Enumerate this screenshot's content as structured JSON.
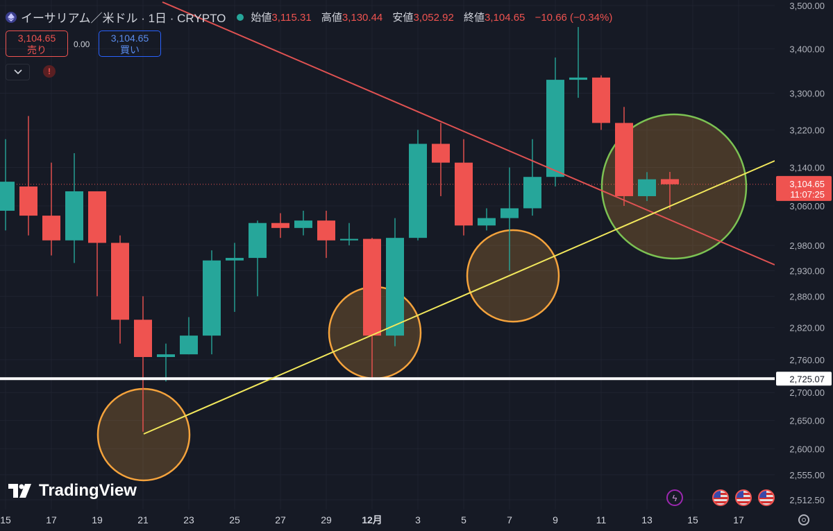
{
  "header": {
    "symbol": "イーサリアム／米ドル · 1日 · CRYPTO",
    "open_label": "始値",
    "open": "3,115.31",
    "high_label": "高値",
    "high": "3,130.44",
    "low_label": "安値",
    "low": "3,052.92",
    "close_label": "終値",
    "close": "3,104.65",
    "change": "−10.66 (−0.34%)"
  },
  "trade": {
    "sell_price": "3,104.65",
    "sell_label": "売り",
    "spread": "0.00",
    "buy_price": "3,104.65",
    "buy_label": "買い"
  },
  "brand": {
    "name": "TradingView"
  },
  "price_tag": {
    "price": "3,104.65",
    "countdown": "11:07:25"
  },
  "support_tag": "2,725.07",
  "icons": [
    "eth-icon",
    "chevron-down-icon",
    "warning-icon",
    "bolt-icon",
    "us-flag-icon",
    "settings-gear-icon"
  ],
  "colors": {
    "up": "#26a69a",
    "down": "#ef5350",
    "trend_up": "#f2e85c",
    "trend_down": "#e05252",
    "highlight": "#f5a33c",
    "highlight_last": "#7cc253",
    "support": "#ffffff"
  },
  "chart_data": {
    "type": "candlestick",
    "title": "イーサリアム／米ドル · 1日 · CRYPTO",
    "y_scale": "log",
    "ylim": [
      2480,
      3500
    ],
    "y_ticks": [
      3500,
      3400,
      3300,
      3220,
      3140,
      3060,
      2980,
      2930,
      2880,
      2820,
      2760,
      2700,
      2650,
      2600,
      2555,
      2512.5
    ],
    "y_tick_labels": [
      "3,500.00",
      "3,400.00",
      "3,300.00",
      "3,220.00",
      "3,140.00",
      "3,060.00",
      "2,980.00",
      "2,930.00",
      "2,880.00",
      "2,820.00",
      "2,760.00",
      "2,700.00",
      "2,650.00",
      "2,600.00",
      "2,555.00",
      "2,512.50"
    ],
    "x_ticks": [
      "2024-11-15",
      "2024-11-17",
      "2024-11-19",
      "2024-11-21",
      "2024-11-23",
      "2024-11-25",
      "2024-11-27",
      "2024-11-29",
      "2024-12-01",
      "2024-12-03",
      "2024-12-05",
      "2024-12-07",
      "2024-12-09",
      "2024-12-11",
      "2024-12-13",
      "2024-12-15",
      "2024-12-17"
    ],
    "x_tick_labels": [
      "15",
      "17",
      "19",
      "21",
      "23",
      "25",
      "27",
      "29",
      "12月",
      "3",
      "5",
      "7",
      "9",
      "11",
      "13",
      "15",
      "17"
    ],
    "candles": [
      {
        "date": "2024-11-15",
        "o": 3050,
        "h": 3200,
        "l": 3010,
        "c": 3110
      },
      {
        "date": "2024-11-16",
        "o": 3100,
        "h": 3250,
        "l": 3000,
        "c": 3040
      },
      {
        "date": "2024-11-17",
        "o": 3040,
        "h": 3150,
        "l": 2960,
        "c": 2990
      },
      {
        "date": "2024-11-18",
        "o": 2990,
        "h": 3170,
        "l": 2945,
        "c": 3090
      },
      {
        "date": "2024-11-19",
        "o": 3090,
        "h": 3090,
        "l": 2880,
        "c": 2985
      },
      {
        "date": "2024-11-20",
        "o": 2985,
        "h": 3000,
        "l": 2790,
        "c": 2835
      },
      {
        "date": "2024-11-21",
        "o": 2835,
        "h": 2880,
        "l": 2630,
        "c": 2765
      },
      {
        "date": "2024-11-22",
        "o": 2765,
        "h": 2790,
        "l": 2720,
        "c": 2770
      },
      {
        "date": "2024-11-23",
        "o": 2770,
        "h": 2840,
        "l": 2770,
        "c": 2805
      },
      {
        "date": "2024-11-24",
        "o": 2805,
        "h": 2970,
        "l": 2770,
        "c": 2950
      },
      {
        "date": "2024-11-25",
        "o": 2950,
        "h": 2985,
        "l": 2850,
        "c": 2955
      },
      {
        "date": "2024-11-26",
        "o": 2955,
        "h": 3030,
        "l": 2880,
        "c": 3025
      },
      {
        "date": "2024-11-27",
        "o": 3025,
        "h": 3045,
        "l": 2995,
        "c": 3015
      },
      {
        "date": "2024-11-28",
        "o": 3015,
        "h": 3050,
        "l": 3000,
        "c": 3030
      },
      {
        "date": "2024-11-29",
        "o": 3030,
        "h": 3050,
        "l": 2955,
        "c": 2990
      },
      {
        "date": "2024-11-30",
        "o": 2990,
        "h": 3025,
        "l": 2980,
        "c": 2993
      },
      {
        "date": "2024-12-01",
        "o": 2993,
        "h": 2995,
        "l": 2725,
        "c": 2805
      },
      {
        "date": "2024-12-02",
        "o": 2805,
        "h": 3035,
        "l": 2785,
        "c": 2995
      },
      {
        "date": "2024-12-03",
        "o": 2995,
        "h": 3220,
        "l": 2990,
        "c": 3190
      },
      {
        "date": "2024-12-04",
        "o": 3190,
        "h": 3235,
        "l": 3080,
        "c": 3150
      },
      {
        "date": "2024-12-05",
        "o": 3150,
        "h": 3200,
        "l": 3000,
        "c": 3020
      },
      {
        "date": "2024-12-06",
        "o": 3020,
        "h": 3055,
        "l": 3010,
        "c": 3035
      },
      {
        "date": "2024-12-07",
        "o": 3035,
        "h": 3140,
        "l": 2930,
        "c": 3055
      },
      {
        "date": "2024-12-08",
        "o": 3055,
        "h": 3200,
        "l": 3040,
        "c": 3120
      },
      {
        "date": "2024-12-09",
        "o": 3120,
        "h": 3380,
        "l": 3100,
        "c": 3330
      },
      {
        "date": "2024-12-10",
        "o": 3330,
        "h": 3450,
        "l": 3290,
        "c": 3335
      },
      {
        "date": "2024-12-11",
        "o": 3335,
        "h": 3340,
        "l": 3220,
        "c": 3235
      },
      {
        "date": "2024-12-12",
        "o": 3235,
        "h": 3270,
        "l": 3060,
        "c": 3080
      },
      {
        "date": "2024-12-13",
        "o": 3080,
        "h": 3130,
        "l": 3070,
        "c": 3115
      },
      {
        "date": "2024-12-14",
        "o": 3115.31,
        "h": 3130.44,
        "l": 3052.92,
        "c": 3104.65
      }
    ],
    "support_level": 2725.07,
    "current_price": 3104.65
  }
}
